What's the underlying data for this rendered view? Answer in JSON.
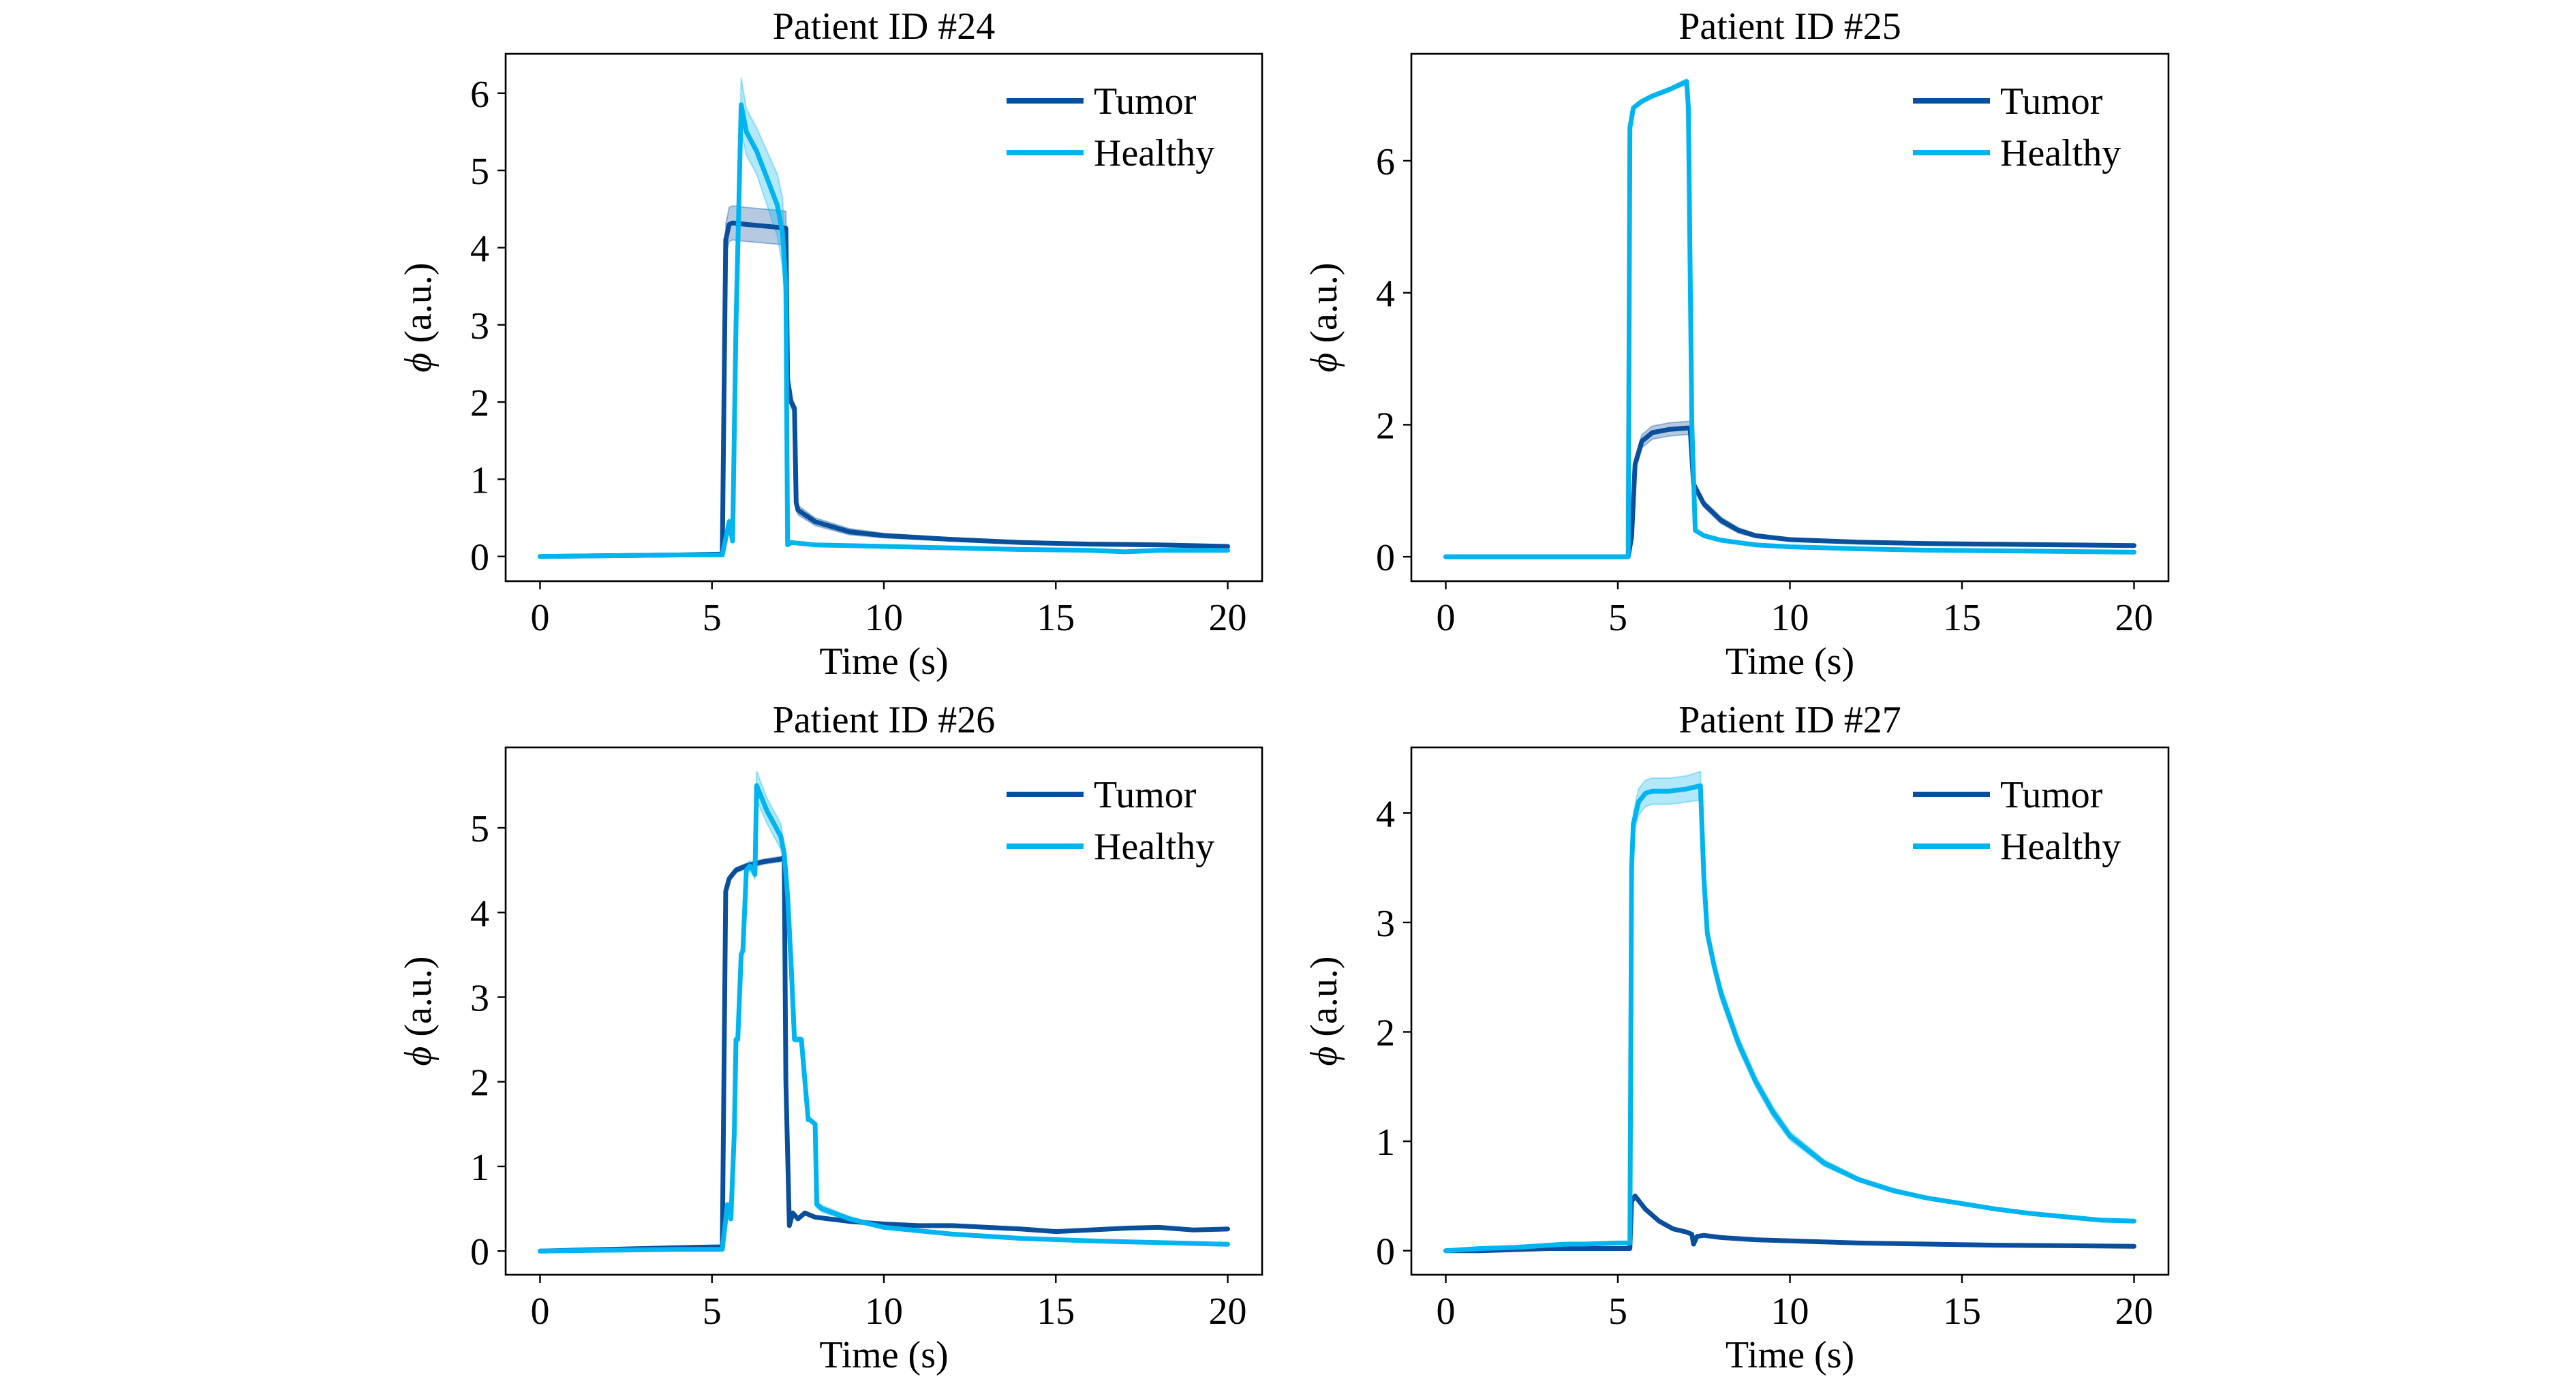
{
  "figure": {
    "colors": {
      "Tumor": "#0a4f9c",
      "Healthy": "#00b4f0",
      "axis": "#000000",
      "background": "#ffffff"
    }
  },
  "chart_data": [
    {
      "type": "line",
      "title": "Patient ID #24",
      "xlabel": "Time (s)",
      "ylabel_symbol": "ϕ",
      "ylabel_unit": " (a.u.)",
      "xlim": [
        -1,
        21
      ],
      "ylim": [
        -0.32,
        6.51
      ],
      "xticks": [
        0,
        5,
        10,
        15,
        20
      ],
      "yticks": [
        0,
        1,
        2,
        3,
        4,
        5,
        6
      ],
      "grid": false,
      "legend": {
        "placement": "top-right",
        "entries": [
          "Tumor",
          "Healthy"
        ]
      },
      "series": [
        {
          "name": "Tumor",
          "x": [
            0,
            2,
            4,
            5.3,
            5.4,
            5.5,
            5.6,
            6.0,
            6.5,
            7.0,
            7.15,
            7.2,
            7.3,
            7.4,
            7.45,
            7.5,
            8,
            9,
            10,
            12,
            14,
            16,
            18,
            20
          ],
          "y": [
            0,
            0.01,
            0.02,
            0.03,
            4.1,
            4.3,
            4.32,
            4.3,
            4.28,
            4.26,
            4.25,
            2.3,
            2.0,
            1.92,
            0.7,
            0.6,
            0.45,
            0.32,
            0.27,
            0.22,
            0.18,
            0.16,
            0.15,
            0.13
          ],
          "band": [
            0,
            0.01,
            0.01,
            0.01,
            0.2,
            0.22,
            0.22,
            0.22,
            0.22,
            0.22,
            0.22,
            0.1,
            0.08,
            0.06,
            0.06,
            0.06,
            0.05,
            0.04,
            0.03,
            0.02,
            0.02,
            0.01,
            0.01,
            0.01
          ]
        },
        {
          "name": "Healthy",
          "x": [
            0,
            2,
            4,
            5.3,
            5.5,
            5.6,
            5.7,
            5.85,
            6.0,
            6.3,
            6.6,
            6.9,
            7.05,
            7.15,
            7.2,
            7.3,
            8,
            10,
            12,
            14,
            16,
            17,
            18,
            20
          ],
          "y": [
            0,
            0.01,
            0.02,
            0.02,
            0.45,
            0.2,
            3.0,
            5.85,
            5.5,
            5.25,
            4.9,
            4.55,
            4.2,
            3.5,
            0.15,
            0.18,
            0.15,
            0.13,
            0.11,
            0.09,
            0.08,
            0.06,
            0.08,
            0.08
          ],
          "band": [
            0,
            0,
            0,
            0,
            0.05,
            0.02,
            0.2,
            0.35,
            0.3,
            0.3,
            0.35,
            0.4,
            0.45,
            0.4,
            0.01,
            0.01,
            0.01,
            0.01,
            0.01,
            0.01,
            0.01,
            0.01,
            0.01,
            0.01
          ]
        }
      ]
    },
    {
      "type": "line",
      "title": "Patient ID #25",
      "xlabel": "Time (s)",
      "ylabel_symbol": "ϕ",
      "ylabel_unit": " (a.u.)",
      "xlim": [
        -1,
        21
      ],
      "ylim": [
        -0.37,
        7.62
      ],
      "xticks": [
        0,
        5,
        10,
        15,
        20
      ],
      "yticks": [
        0,
        2,
        4,
        6
      ],
      "grid": false,
      "legend": {
        "placement": "top-right",
        "entries": [
          "Tumor",
          "Healthy"
        ]
      },
      "series": [
        {
          "name": "Tumor",
          "x": [
            0,
            2,
            4,
            5.3,
            5.4,
            5.5,
            5.7,
            6.0,
            6.5,
            7.0,
            7.1,
            7.2,
            7.5,
            8,
            8.5,
            9,
            10,
            12,
            14,
            16,
            18,
            20
          ],
          "y": [
            0,
            0,
            0,
            0,
            0.3,
            1.4,
            1.75,
            1.88,
            1.93,
            1.95,
            1.95,
            1.1,
            0.8,
            0.55,
            0.4,
            0.32,
            0.26,
            0.22,
            0.2,
            0.19,
            0.18,
            0.17
          ],
          "band": [
            0,
            0,
            0,
            0,
            0.05,
            0.1,
            0.1,
            0.1,
            0.1,
            0.1,
            0.1,
            0.06,
            0.05,
            0.05,
            0.04,
            0.03,
            0.02,
            0.01,
            0.01,
            0.01,
            0.01,
            0.01
          ],
          "fill_opacity": 0.3
        },
        {
          "name": "Healthy",
          "x": [
            0,
            2,
            4,
            5.3,
            5.35,
            5.45,
            5.7,
            6.0,
            6.5,
            7.0,
            7.05,
            7.15,
            7.25,
            7.5,
            8,
            9,
            10,
            12,
            14,
            16,
            18,
            20
          ],
          "y": [
            0,
            0,
            0,
            0,
            6.5,
            6.8,
            6.9,
            6.98,
            7.08,
            7.2,
            6.8,
            2.0,
            0.4,
            0.32,
            0.25,
            0.18,
            0.15,
            0.12,
            0.1,
            0.09,
            0.08,
            0.07
          ],
          "band": [
            0,
            0,
            0,
            0,
            0.03,
            0.03,
            0.03,
            0.03,
            0.03,
            0.04,
            0.03,
            0.02,
            0.01,
            0.01,
            0.01,
            0.01,
            0.01,
            0.01,
            0.01,
            0.01,
            0.01,
            0.01
          ]
        }
      ]
    },
    {
      "type": "line",
      "title": "Patient ID #26",
      "xlabel": "Time (s)",
      "ylabel_symbol": "ϕ",
      "ylabel_unit": " (a.u.)",
      "xlim": [
        -1,
        21
      ],
      "ylim": [
        -0.28,
        5.95
      ],
      "xticks": [
        0,
        5,
        10,
        15,
        20
      ],
      "yticks": [
        0,
        1,
        2,
        3,
        4,
        5
      ],
      "grid": false,
      "legend": {
        "placement": "top-right",
        "entries": [
          "Tumor",
          "Healthy"
        ]
      },
      "series": [
        {
          "name": "Tumor",
          "x": [
            0,
            2,
            4,
            5.3,
            5.4,
            5.5,
            5.7,
            6.0,
            6.5,
            7.0,
            7.1,
            7.15,
            7.25,
            7.35,
            7.5,
            7.7,
            8,
            9,
            10,
            11,
            12,
            13,
            14,
            15,
            16,
            17,
            18,
            19,
            20
          ],
          "y": [
            0,
            0.02,
            0.04,
            0.05,
            4.25,
            4.4,
            4.5,
            4.55,
            4.6,
            4.63,
            4.65,
            2.0,
            0.3,
            0.45,
            0.38,
            0.45,
            0.4,
            0.35,
            0.32,
            0.3,
            0.3,
            0.28,
            0.26,
            0.23,
            0.25,
            0.27,
            0.28,
            0.25,
            0.26
          ],
          "band": [
            0,
            0,
            0,
            0,
            0.03,
            0.03,
            0.03,
            0.03,
            0.03,
            0.03,
            0.03,
            0.02,
            0.01,
            0.01,
            0.01,
            0.01,
            0.01,
            0.01,
            0.01,
            0.01,
            0.01,
            0.01,
            0.01,
            0.01,
            0.01,
            0.01,
            0.01,
            0.01,
            0.01
          ]
        },
        {
          "name": "Healthy",
          "x": [
            0,
            2,
            4,
            5.3,
            5.45,
            5.55,
            5.65,
            5.7,
            5.75,
            5.85,
            5.9,
            6.0,
            6.1,
            6.2,
            6.25,
            6.3,
            6.6,
            7.0,
            7.1,
            7.2,
            7.3,
            7.4,
            7.5,
            7.6,
            7.8,
            7.85,
            8.0,
            8.05,
            8.2,
            9,
            10,
            12,
            14,
            16,
            18,
            20
          ],
          "y": [
            0,
            0.01,
            0.02,
            0.02,
            0.55,
            0.38,
            1.4,
            2.5,
            2.5,
            3.5,
            3.55,
            4.5,
            4.55,
            4.5,
            4.45,
            5.5,
            5.2,
            4.9,
            4.7,
            4.2,
            3.4,
            2.5,
            2.5,
            2.5,
            1.55,
            1.55,
            1.5,
            0.55,
            0.5,
            0.38,
            0.28,
            0.2,
            0.15,
            0.12,
            0.1,
            0.08
          ],
          "band": [
            0,
            0,
            0,
            0,
            0.02,
            0.02,
            0.03,
            0.03,
            0.03,
            0.05,
            0.05,
            0.06,
            0.06,
            0.06,
            0.06,
            0.17,
            0.15,
            0.15,
            0.12,
            0.08,
            0.05,
            0.03,
            0.03,
            0.03,
            0.02,
            0.02,
            0.02,
            0.04,
            0.04,
            0.03,
            0.02,
            0.01,
            0.01,
            0.01,
            0.01,
            0.01
          ]
        }
      ]
    },
    {
      "type": "line",
      "title": "Patient ID #27",
      "xlabel": "Time (s)",
      "ylabel_symbol": "ϕ",
      "ylabel_unit": " (a.u.)",
      "xlim": [
        -1,
        21
      ],
      "ylim": [
        -0.22,
        4.6
      ],
      "xticks": [
        0,
        5,
        10,
        15,
        20
      ],
      "yticks": [
        0,
        1,
        2,
        3,
        4
      ],
      "grid": false,
      "legend": {
        "placement": "top-right",
        "entries": [
          "Tumor",
          "Healthy"
        ]
      },
      "series": [
        {
          "name": "Tumor",
          "x": [
            0,
            1,
            2,
            3,
            4,
            5,
            5.35,
            5.4,
            5.5,
            5.8,
            6.2,
            6.6,
            7.0,
            7.15,
            7.2,
            7.3,
            7.5,
            8,
            9,
            10,
            12,
            14,
            16,
            18,
            20
          ],
          "y": [
            0,
            0.0,
            0.01,
            0.02,
            0.02,
            0.02,
            0.02,
            0.45,
            0.5,
            0.38,
            0.27,
            0.2,
            0.17,
            0.15,
            0.06,
            0.13,
            0.14,
            0.12,
            0.1,
            0.09,
            0.07,
            0.06,
            0.05,
            0.045,
            0.04
          ],
          "band": [
            0,
            0,
            0,
            0,
            0,
            0,
            0,
            0.01,
            0.01,
            0.01,
            0.01,
            0.01,
            0.01,
            0.01,
            0.01,
            0.01,
            0.01,
            0.01,
            0.01,
            0.01,
            0.01,
            0.01,
            0.01,
            0.01,
            0.01
          ]
        },
        {
          "name": "Healthy",
          "x": [
            0,
            1,
            2,
            3,
            3.5,
            4,
            5,
            5.35,
            5.4,
            5.45,
            5.6,
            5.8,
            6.0,
            6.5,
            7.0,
            7.4,
            7.5,
            7.6,
            7.8,
            8,
            8.5,
            9,
            9.5,
            10,
            11,
            12,
            13,
            14,
            15,
            16,
            17,
            18,
            19,
            20
          ],
          "y": [
            0,
            0.02,
            0.03,
            0.05,
            0.06,
            0.06,
            0.07,
            0.07,
            3.5,
            3.9,
            4.1,
            4.18,
            4.2,
            4.2,
            4.22,
            4.25,
            3.4,
            2.9,
            2.6,
            2.35,
            1.9,
            1.55,
            1.27,
            1.05,
            0.8,
            0.65,
            0.55,
            0.48,
            0.43,
            0.38,
            0.34,
            0.31,
            0.28,
            0.27
          ],
          "band": [
            0,
            0,
            0,
            0,
            0,
            0,
            0,
            0,
            0.05,
            0.1,
            0.12,
            0.12,
            0.12,
            0.12,
            0.12,
            0.13,
            0.08,
            0.07,
            0.07,
            0.07,
            0.06,
            0.05,
            0.05,
            0.04,
            0.03,
            0.02,
            0.02,
            0.01,
            0.01,
            0.01,
            0.01,
            0.01,
            0.01,
            0.01
          ]
        }
      ]
    }
  ]
}
